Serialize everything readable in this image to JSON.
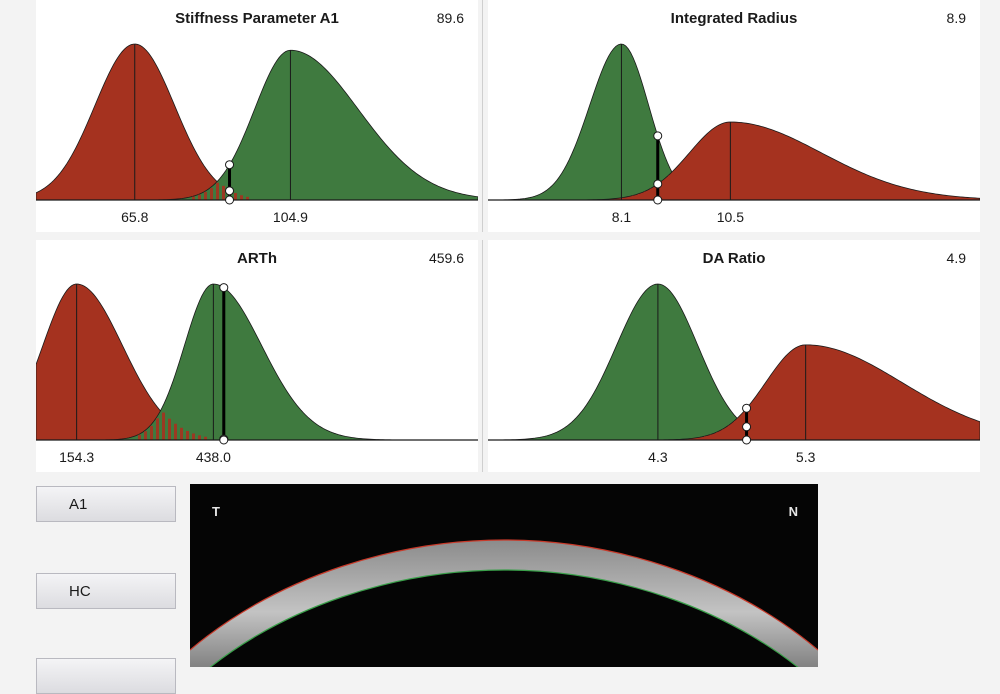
{
  "colors": {
    "green_fill": "#3f7a3f",
    "red_fill": "#a5321f",
    "background": "#f3f3f3"
  },
  "panels": [
    {
      "id": "stiffness",
      "title": "Stiffness Parameter A1",
      "value": "89.6",
      "ticks": [
        {
          "label": "65.8",
          "x": 65.8
        },
        {
          "label": "104.9",
          "x": 104.9
        }
      ],
      "x_range": [
        41,
        152
      ],
      "red": {
        "mean": 65.8,
        "sd_left": 10,
        "sd_right": 10,
        "peak": 1.0
      },
      "green": {
        "mean": 104.9,
        "sd_left": 9,
        "sd_right": 17,
        "peak": 0.96
      },
      "marker": 89.6
    },
    {
      "id": "integrated-radius",
      "title": "Integrated Radius",
      "value": "8.9",
      "ticks": [
        {
          "label": "8.1",
          "x": 8.1
        },
        {
          "label": "10.5",
          "x": 10.5
        }
      ],
      "x_range": [
        5.16,
        16.0
      ],
      "red": {
        "mean": 10.5,
        "sd_left": 0.9,
        "sd_right": 2.0,
        "peak": 0.5
      },
      "green": {
        "mean": 8.1,
        "sd_left": 0.7,
        "sd_right": 0.6,
        "peak": 1.0
      },
      "marker": 8.9
    },
    {
      "id": "arth",
      "title": "ARTh",
      "value": "459.6",
      "ticks": [
        {
          "label": "154.3",
          "x": 154.3
        },
        {
          "label": "438.0",
          "x": 438.0
        }
      ],
      "x_range": [
        70,
        987
      ],
      "red": {
        "mean": 154.3,
        "sd_left": 70,
        "sd_right": 95,
        "peak": 1.0
      },
      "green": {
        "mean": 438.0,
        "sd_left": 60,
        "sd_right": 100,
        "peak": 1.0
      },
      "marker": 459.6
    },
    {
      "id": "da-ratio",
      "title": "DA Ratio",
      "value": "4.9",
      "ticks": [
        {
          "label": "4.3",
          "x": 4.3
        },
        {
          "label": "5.3",
          "x": 5.3
        }
      ],
      "x_range": [
        3.15,
        6.48
      ],
      "red": {
        "mean": 5.3,
        "sd_left": 0.27,
        "sd_right": 0.65,
        "peak": 0.61
      },
      "green": {
        "mean": 4.3,
        "sd_left": 0.28,
        "sd_right": 0.27,
        "peak": 1.0
      },
      "marker": 4.9
    }
  ],
  "buttons": {
    "a1": "A1",
    "hc": "HC"
  },
  "scheimpflug": {
    "left_label": "T",
    "right_label": "N"
  }
}
